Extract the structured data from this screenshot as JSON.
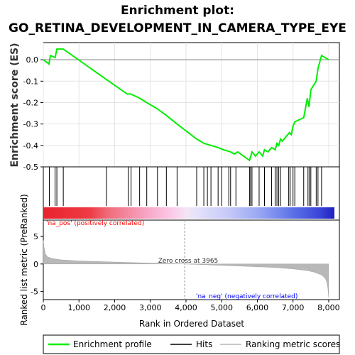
{
  "chart_data": {
    "type": "line",
    "title": "Enrichment plot:",
    "subtitle": "GO_RETINA_DEVELOPMENT_IN_CAMERA_TYPE_EYE",
    "es_ylabel": "Enrichment score (ES)",
    "metric_ylabel": "Ranked list metric (PreRanked)",
    "xlabel": "Rank in Ordered Dataset",
    "xlim": [
      0,
      8300
    ],
    "x_ticks": [
      0,
      1000,
      2000,
      3000,
      4000,
      5000,
      6000,
      7000,
      8000
    ],
    "x_tick_labels": [
      "0",
      "1,000",
      "2,000",
      "3,000",
      "4,000",
      "5,000",
      "6,000",
      "7,000",
      "8,000"
    ],
    "es_ylim": [
      -0.5,
      0.08
    ],
    "es_ticks": [
      0.0,
      -0.1,
      -0.2,
      -0.3,
      -0.4,
      -0.5
    ],
    "es_tick_labels": [
      "0.0",
      "-0.1",
      "-0.2",
      "-0.3",
      "-0.4",
      "-0.5"
    ],
    "metric_ylim": [
      -6.5,
      8
    ],
    "metric_ticks": [
      5,
      0,
      -5
    ],
    "metric_tick_labels": [
      "5",
      "0",
      "-5"
    ],
    "enrichment_profile": {
      "name": "Enrichment profile",
      "color": "#00ee00",
      "x": [
        0,
        160,
        200,
        330,
        380,
        560,
        1750,
        2350,
        2450,
        2700,
        2900,
        3200,
        3450,
        3750,
        4300,
        4500,
        4700,
        4900,
        5050,
        5250,
        5350,
        5450,
        5780,
        5850,
        5950,
        6050,
        6150,
        6200,
        6300,
        6400,
        6500,
        6550,
        6600,
        6650,
        6700,
        6900,
        6950,
        7000,
        7050,
        7300,
        7400,
        7450,
        7500,
        7650,
        7700,
        7800,
        8000
      ],
      "y": [
        0.0,
        -0.02,
        0.02,
        0.01,
        0.05,
        0.05,
        -0.09,
        -0.16,
        -0.16,
        -0.18,
        -0.2,
        -0.23,
        -0.26,
        -0.3,
        -0.37,
        -0.39,
        -0.4,
        -0.41,
        -0.42,
        -0.43,
        -0.44,
        -0.43,
        -0.47,
        -0.43,
        -0.45,
        -0.43,
        -0.45,
        -0.42,
        -0.43,
        -0.41,
        -0.42,
        -0.39,
        -0.4,
        -0.37,
        -0.38,
        -0.34,
        -0.35,
        -0.31,
        -0.29,
        -0.27,
        -0.18,
        -0.22,
        -0.14,
        -0.1,
        -0.04,
        0.02,
        0.0
      ]
    },
    "hits": {
      "name": "Hits",
      "color": "#000000",
      "x": [
        170,
        330,
        380,
        560,
        1770,
        2380,
        2460,
        2700,
        2900,
        3200,
        3450,
        3750,
        4300,
        4500,
        4600,
        4700,
        4900,
        5000,
        5200,
        5250,
        5400,
        5780,
        5810,
        5850,
        6050,
        6200,
        6400,
        6500,
        6550,
        6600,
        6650,
        6880,
        6920,
        7000,
        7050,
        7300,
        7420,
        7460,
        7500,
        7650,
        7700,
        7800
      ]
    },
    "ranking_metric": {
      "name": "Ranking metric scores",
      "color": "#b0b0b0",
      "x": [
        0,
        20,
        60,
        120,
        250,
        500,
        1000,
        2000,
        3000,
        3965,
        5000,
        6000,
        6500,
        7000,
        7400,
        7600,
        7800,
        7900,
        7950,
        7980,
        8000
      ],
      "y": [
        4.3,
        3.0,
        1.8,
        1.3,
        1.0,
        0.75,
        0.55,
        0.35,
        0.15,
        0.0,
        -0.25,
        -0.5,
        -0.65,
        -0.9,
        -1.2,
        -1.5,
        -2.0,
        -2.6,
        -3.3,
        -4.5,
        -6.1
      ]
    },
    "zero_cross": 3965,
    "zero_cross_label": "Zero cross at 3965",
    "pos_label": "'na_pos' (positively correlated)",
    "neg_label": "'na_neg' (negatively correlated)",
    "pos_label_color": "#ff0000",
    "neg_label_color": "#0000ff",
    "legend_placement": "bottom",
    "legend": [
      "Enrichment profile",
      "Hits",
      "Ranking metric scores"
    ]
  }
}
